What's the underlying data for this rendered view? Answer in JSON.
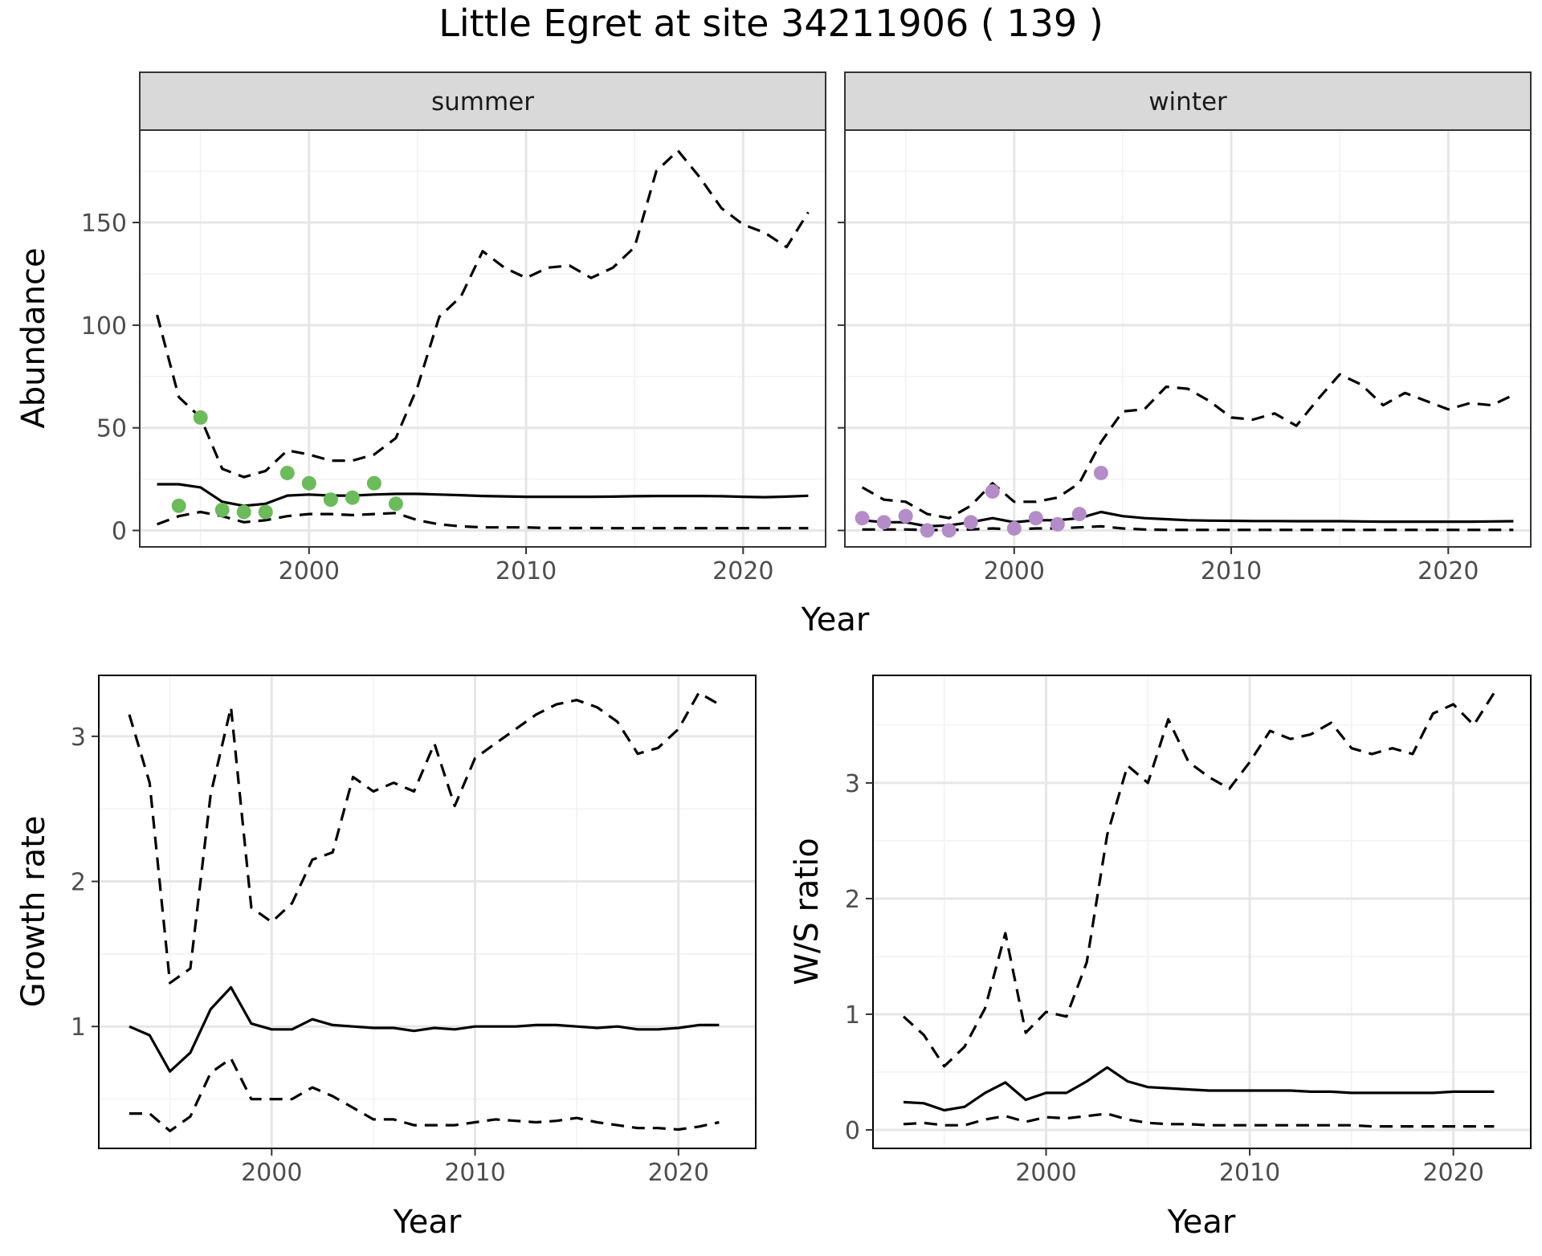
{
  "title": "Little Egret at site 34211906 ( 139 )",
  "colors": {
    "summer_points": "#6bbb5a",
    "winter_points": "#b48cc8",
    "strip_fill": "#d9d9d9",
    "panel_border": "#333333",
    "grid_major": "#e6e6e6",
    "grid_minor": "#f2f2f2",
    "line": "#000000"
  },
  "chart_data": [
    {
      "type": "line",
      "facet": "summer",
      "xlabel": "Year",
      "ylabel": "Abundance",
      "xlim": [
        1992.2,
        2023.8
      ],
      "ylim": [
        -8,
        195
      ],
      "xticks": [
        2000,
        2010,
        2020
      ],
      "yticks": [
        0,
        50,
        100,
        150
      ],
      "grid": true,
      "x": [
        1993,
        1994,
        1995,
        1996,
        1997,
        1998,
        1999,
        2000,
        2001,
        2002,
        2003,
        2004,
        2005,
        2006,
        2007,
        2008,
        2009,
        2010,
        2011,
        2012,
        2013,
        2014,
        2015,
        2016,
        2017,
        2018,
        2019,
        2020,
        2021,
        2022,
        2023
      ],
      "series": [
        {
          "role": "estimate",
          "style": "solid",
          "values": [
            22.5,
            22.5,
            21,
            14,
            12,
            13,
            17,
            17.5,
            17,
            17,
            17.5,
            17.8,
            17.8,
            17.5,
            17.2,
            16.8,
            16.6,
            16.4,
            16.4,
            16.4,
            16.4,
            16.5,
            16.7,
            16.8,
            16.8,
            16.8,
            16.7,
            16.4,
            16.2,
            16.5,
            16.9
          ]
        },
        {
          "role": "upper",
          "style": "dashed",
          "values": [
            105,
            65,
            55,
            30,
            26,
            29,
            39,
            37,
            34,
            34,
            37,
            45,
            70,
            104,
            114,
            136,
            128,
            123,
            128,
            129,
            123,
            128,
            138,
            175,
            185,
            172,
            157,
            149,
            145,
            138,
            155
          ]
        },
        {
          "role": "lower",
          "style": "dashed",
          "values": [
            3,
            7,
            9,
            7,
            4,
            5,
            7,
            8,
            8,
            7.5,
            8,
            8.5,
            5,
            3,
            2,
            1.5,
            1.5,
            1.5,
            1.2,
            1.2,
            1.2,
            1.1,
            1.1,
            1.1,
            1.1,
            1.1,
            1.1,
            1.1,
            1.1,
            1.1,
            1.1
          ]
        }
      ],
      "points": {
        "x": [
          1994,
          1995,
          1996,
          1997,
          1998,
          1999,
          2000,
          2001,
          2002,
          2003,
          2004
        ],
        "y": [
          12,
          55,
          10,
          9,
          9,
          28,
          23,
          15,
          16,
          23,
          13
        ]
      }
    },
    {
      "type": "line",
      "facet": "winter",
      "xlabel": "Year",
      "ylabel": "Abundance",
      "xlim": [
        1992.2,
        2023.8
      ],
      "ylim": [
        -8,
        195
      ],
      "xticks": [
        2000,
        2010,
        2020
      ],
      "yticks": [
        0,
        50,
        100,
        150
      ],
      "grid": true,
      "x": [
        1993,
        1994,
        1995,
        1996,
        1997,
        1998,
        1999,
        2000,
        2001,
        2002,
        2003,
        2004,
        2005,
        2006,
        2007,
        2008,
        2009,
        2010,
        2011,
        2012,
        2013,
        2014,
        2015,
        2016,
        2017,
        2018,
        2019,
        2020,
        2021,
        2022,
        2023
      ],
      "series": [
        {
          "role": "estimate",
          "style": "solid",
          "values": [
            5,
            4,
            4,
            2,
            2.5,
            4,
            6,
            4,
            5,
            5,
            6,
            9,
            7,
            6,
            5.5,
            5,
            4.8,
            4.7,
            4.6,
            4.6,
            4.5,
            4.5,
            4.5,
            4.4,
            4.3,
            4.3,
            4.3,
            4.3,
            4.3,
            4.4,
            4.5
          ]
        },
        {
          "role": "upper",
          "style": "dashed",
          "values": [
            21,
            15,
            14,
            8,
            6,
            12,
            23,
            14,
            14,
            16,
            23,
            43,
            58,
            59,
            70,
            69,
            63,
            55,
            54,
            57,
            51,
            64,
            76,
            71,
            61,
            67,
            63,
            59,
            62,
            61,
            66
          ]
        },
        {
          "role": "lower",
          "style": "dashed",
          "values": [
            0.5,
            0.5,
            0.5,
            0.2,
            0.2,
            0.5,
            1,
            0.5,
            1,
            1,
            1.5,
            2,
            1,
            0.5,
            0.3,
            0.3,
            0.3,
            0.3,
            0.3,
            0.3,
            0.3,
            0.3,
            0.3,
            0.3,
            0.3,
            0.3,
            0.3,
            0.3,
            0.3,
            0.3,
            0.3
          ]
        }
      ],
      "points": {
        "x": [
          1993,
          1994,
          1995,
          1996,
          1997,
          1998,
          1999,
          2000,
          2001,
          2002,
          2003,
          2004
        ],
        "y": [
          6,
          4,
          7,
          0,
          0,
          4,
          19,
          1,
          6,
          3,
          8,
          28
        ]
      }
    },
    {
      "type": "line",
      "xlabel": "Year",
      "ylabel": "Growth rate",
      "xlim": [
        1991.5,
        2023.8
      ],
      "ylim": [
        0.16,
        3.42
      ],
      "xticks": [
        2000,
        2010,
        2020
      ],
      "yticks": [
        1,
        2,
        3
      ],
      "grid": true,
      "x": [
        1993,
        1994,
        1995,
        1996,
        1997,
        1998,
        1999,
        2000,
        2001,
        2002,
        2003,
        2004,
        2005,
        2006,
        2007,
        2008,
        2009,
        2010,
        2011,
        2012,
        2013,
        2014,
        2015,
        2016,
        2017,
        2018,
        2019,
        2020,
        2021,
        2022
      ],
      "series": [
        {
          "role": "estimate",
          "style": "solid",
          "values": [
            1.0,
            0.94,
            0.69,
            0.82,
            1.12,
            1.27,
            1.02,
            0.98,
            0.98,
            1.05,
            1.01,
            1.0,
            0.99,
            0.99,
            0.97,
            0.99,
            0.98,
            1.0,
            1.0,
            1.0,
            1.01,
            1.01,
            1.0,
            0.99,
            1.0,
            0.98,
            0.98,
            0.99,
            1.01,
            1.01
          ]
        },
        {
          "role": "upper",
          "style": "dashed",
          "values": [
            3.15,
            2.68,
            1.3,
            1.4,
            2.6,
            3.2,
            1.82,
            1.72,
            1.85,
            2.15,
            2.2,
            2.72,
            2.62,
            2.68,
            2.62,
            2.95,
            2.52,
            2.85,
            2.95,
            3.05,
            3.15,
            3.22,
            3.25,
            3.2,
            3.1,
            2.88,
            2.92,
            3.05,
            3.3,
            3.22
          ]
        },
        {
          "role": "lower",
          "style": "dashed",
          "values": [
            0.4,
            0.4,
            0.28,
            0.38,
            0.68,
            0.78,
            0.5,
            0.5,
            0.5,
            0.58,
            0.52,
            0.44,
            0.36,
            0.36,
            0.32,
            0.32,
            0.32,
            0.34,
            0.36,
            0.35,
            0.34,
            0.35,
            0.37,
            0.34,
            0.32,
            0.3,
            0.3,
            0.29,
            0.31,
            0.34
          ]
        }
      ]
    },
    {
      "type": "line",
      "xlabel": "Year",
      "ylabel": "W/S ratio",
      "xlim": [
        1991.5,
        2023.8
      ],
      "ylim": [
        -0.16,
        3.93
      ],
      "xticks": [
        2000,
        2010,
        2020
      ],
      "yticks": [
        0,
        1,
        2,
        3
      ],
      "grid": true,
      "x": [
        1993,
        1994,
        1995,
        1996,
        1997,
        1998,
        1999,
        2000,
        2001,
        2002,
        2003,
        2004,
        2005,
        2006,
        2007,
        2008,
        2009,
        2010,
        2011,
        2012,
        2013,
        2014,
        2015,
        2016,
        2017,
        2018,
        2019,
        2020,
        2021,
        2022
      ],
      "series": [
        {
          "role": "estimate",
          "style": "solid",
          "values": [
            0.24,
            0.23,
            0.17,
            0.2,
            0.32,
            0.41,
            0.26,
            0.32,
            0.32,
            0.42,
            0.54,
            0.42,
            0.37,
            0.36,
            0.35,
            0.34,
            0.34,
            0.34,
            0.34,
            0.34,
            0.33,
            0.33,
            0.32,
            0.32,
            0.32,
            0.32,
            0.32,
            0.33,
            0.33,
            0.33
          ]
        },
        {
          "role": "upper",
          "style": "dashed",
          "values": [
            0.98,
            0.82,
            0.55,
            0.72,
            1.05,
            1.7,
            0.84,
            1.02,
            0.98,
            1.45,
            2.55,
            3.15,
            3.0,
            3.55,
            3.18,
            3.05,
            2.95,
            3.18,
            3.45,
            3.38,
            3.42,
            3.52,
            3.3,
            3.25,
            3.3,
            3.25,
            3.6,
            3.68,
            3.5,
            3.78
          ]
        },
        {
          "role": "lower",
          "style": "dashed",
          "values": [
            0.05,
            0.06,
            0.04,
            0.04,
            0.09,
            0.12,
            0.07,
            0.11,
            0.1,
            0.12,
            0.14,
            0.09,
            0.06,
            0.05,
            0.05,
            0.04,
            0.04,
            0.04,
            0.04,
            0.04,
            0.04,
            0.04,
            0.04,
            0.03,
            0.03,
            0.03,
            0.03,
            0.03,
            0.03,
            0.03
          ]
        }
      ]
    }
  ]
}
